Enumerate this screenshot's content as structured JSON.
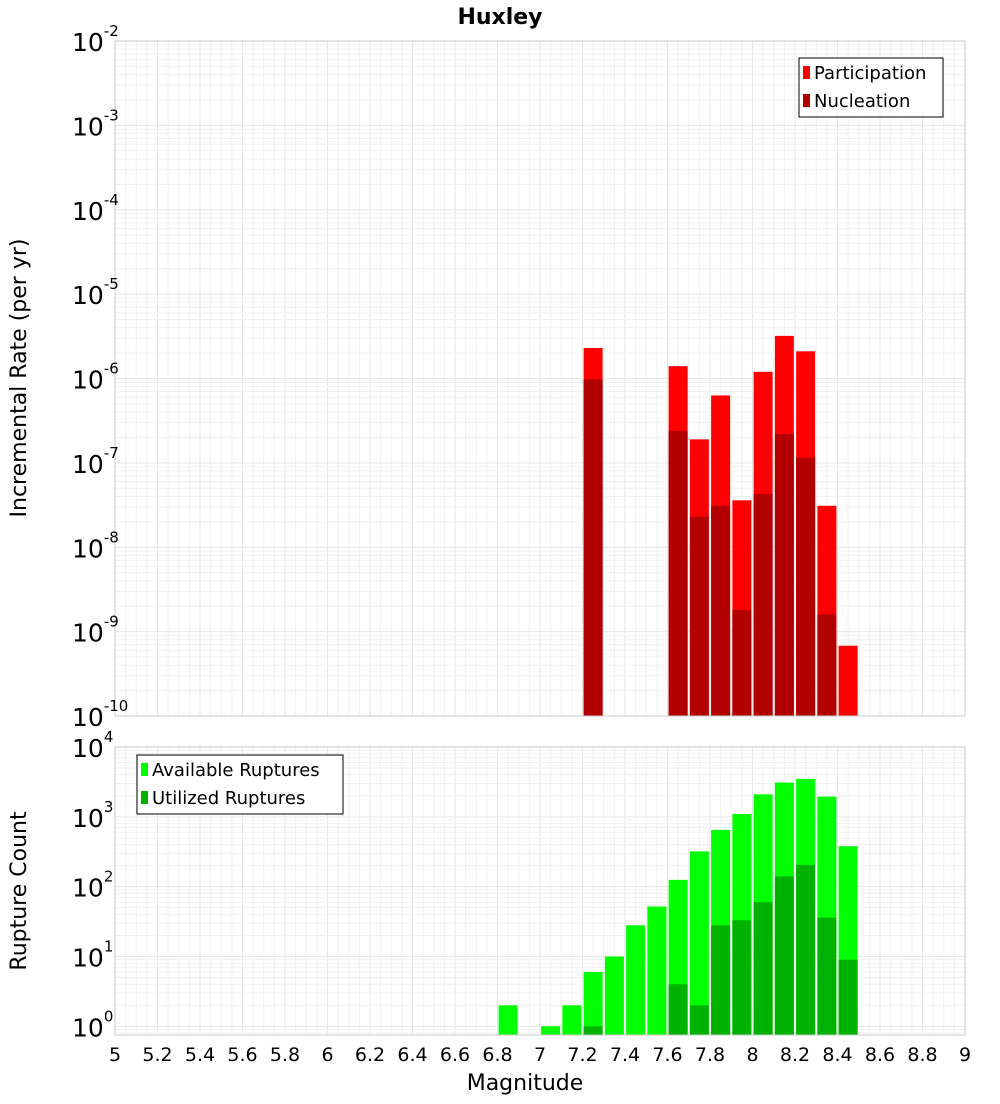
{
  "title": "Huxley",
  "colors": {
    "participation": "#ff0000",
    "nucleation": "#b20000",
    "available": "#00ff00",
    "utilized": "#00b200"
  },
  "chart_data": [
    {
      "type": "bar",
      "scale": "log",
      "title": "Huxley",
      "xlabel": "Magnitude",
      "ylabel": "Incremental Rate (per yr)",
      "xlim": [
        5,
        9
      ],
      "ylim": [
        1e-10,
        0.01
      ],
      "y_tick_exponents": [
        "-10",
        "-9",
        "-8",
        "-7",
        "-6",
        "-5",
        "-4",
        "-3",
        "-2"
      ],
      "legend": {
        "position": "top-right"
      },
      "x": [
        7.25,
        7.65,
        7.75,
        7.85,
        7.95,
        8.05,
        8.15,
        8.25,
        8.35,
        8.45
      ],
      "series": [
        {
          "name": "Participation",
          "values": [
            2.3e-06,
            1.4e-06,
            1.9e-07,
            6.3e-07,
            3.6e-08,
            1.2e-06,
            3.2e-06,
            2.1e-06,
            3.1e-08,
            6.8e-10
          ]
        },
        {
          "name": "Nucleation",
          "values": [
            9.8e-07,
            2.4e-07,
            2.3e-08,
            3.1e-08,
            1.8e-09,
            4.3e-08,
            2.2e-07,
            1.15e-07,
            1.6e-09,
            null
          ]
        }
      ]
    },
    {
      "type": "bar",
      "scale": "log",
      "xlabel": "Magnitude",
      "ylabel": "Rupture Count",
      "xlim": [
        5,
        9
      ],
      "ylim": [
        0.75,
        10000
      ],
      "y_tick_exponents": [
        "0",
        "1",
        "2",
        "3",
        "4"
      ],
      "x_ticks": [
        "5",
        "5.2",
        "5.4",
        "5.6",
        "5.8",
        "6",
        "6.2",
        "6.4",
        "6.6",
        "6.8",
        "7",
        "7.2",
        "7.4",
        "7.6",
        "7.8",
        "8",
        "8.2",
        "8.4",
        "8.6",
        "8.8",
        "9"
      ],
      "legend": {
        "position": "top-left"
      },
      "x": [
        6.85,
        7.05,
        7.15,
        7.25,
        7.35,
        7.45,
        7.55,
        7.65,
        7.75,
        7.85,
        7.95,
        8.05,
        8.15,
        8.25,
        8.35,
        8.45
      ],
      "series": [
        {
          "name": "Available Ruptures",
          "values": [
            2,
            1,
            2,
            6,
            10,
            28,
            52,
            125,
            320,
            650,
            1100,
            2100,
            3100,
            3500,
            1950,
            380
          ]
        },
        {
          "name": "Utilized Ruptures",
          "values": [
            null,
            null,
            null,
            1,
            null,
            null,
            null,
            4,
            2,
            28,
            33,
            60,
            140,
            205,
            36,
            9
          ]
        }
      ]
    }
  ]
}
